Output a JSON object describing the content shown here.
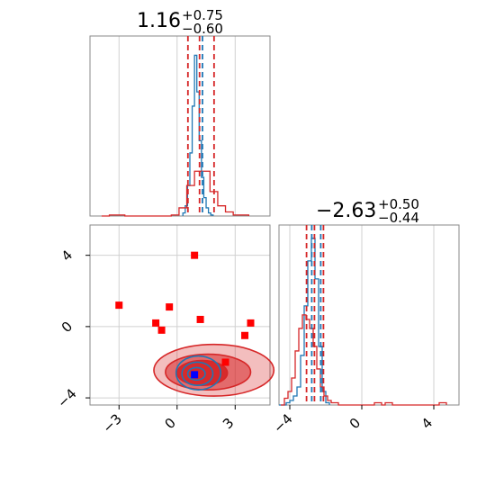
{
  "colors": {
    "blue": "#1f77b4",
    "red": "#d62728",
    "marker_red": "#ff0000",
    "marker_blue": "#0000ff",
    "grid": "#d0d0d0",
    "frame": "#888888"
  },
  "chart_data": {
    "type": "corner",
    "grid": true,
    "panels": [
      {
        "id": "hist_p1",
        "type": "histogram",
        "title": {
          "main": "1.16",
          "sup": "+0.75",
          "sub": "−0.60"
        },
        "xlim": [
          -4.5,
          4.8
        ],
        "quantiles_red": [
          0.56,
          1.16,
          1.91
        ],
        "quantiles_blue": [
          1.31
        ],
        "series": [
          {
            "name": "",
            "color": "#1f77b4",
            "bin_edges": [
              0.3,
              0.42,
              0.54,
              0.66,
              0.78,
              0.9,
              1.02,
              1.14,
              1.26,
              1.38,
              1.5,
              1.62,
              1.74,
              1.86
            ],
            "counts": [
              3,
              10,
              30,
              62,
              108,
              158,
              122,
              74,
              38,
              18,
              8,
              3,
              1
            ]
          },
          {
            "name": "",
            "color": "#d62728",
            "bin_edges": [
              -3.9,
              -3.5,
              -3.1,
              -2.7,
              -2.3,
              -1.9,
              -1.5,
              -1.1,
              -0.7,
              -0.3,
              0.1,
              0.5,
              0.9,
              1.3,
              1.7,
              2.1,
              2.5,
              2.9,
              3.3,
              3.7
            ],
            "counts": [
              0,
              1,
              1,
              0,
              0,
              0,
              0,
              0,
              0,
              1,
              8,
              30,
              44,
              44,
              24,
              10,
              4,
              1,
              1
            ]
          }
        ]
      },
      {
        "id": "hist_p2",
        "type": "histogram",
        "title": {
          "main": "−2.63",
          "sup": "+0.50",
          "sub": "−0.44"
        },
        "xlim": [
          -4.6,
          5.4
        ],
        "xticks": [
          -4,
          0,
          4
        ],
        "quantiles_red": [
          -3.07,
          -2.63,
          -2.13
        ],
        "quantiles_blue": [
          -2.78,
          -2.28
        ],
        "series": [
          {
            "name": "",
            "color": "#1f77b4",
            "bin_edges": [
              -4.6,
              -4.4,
              -4.2,
              -4.0,
              -3.8,
              -3.6,
              -3.4,
              -3.2,
              -3.0,
              -2.8,
              -2.6,
              -2.4,
              -2.2,
              -2.0,
              -1.8
            ],
            "counts": [
              0,
              0,
              1,
              2,
              4,
              8,
              22,
              44,
              64,
              74,
              56,
              26,
              6,
              1
            ]
          },
          {
            "name": "",
            "color": "#d62728",
            "bin_edges": [
              -4.5,
              -4.3,
              -4.1,
              -3.9,
              -3.7,
              -3.5,
              -3.3,
              -3.1,
              -2.9,
              -2.7,
              -2.5,
              -2.3,
              -2.1,
              -1.9,
              -1.7,
              -1.5,
              -1.3,
              -1.1,
              -0.9,
              -0.7,
              -0.5,
              -0.3,
              -0.1,
              0.1,
              0.3,
              0.5,
              0.7,
              0.9,
              1.1,
              1.3,
              1.5,
              1.7,
              1.9,
              2.1,
              2.3,
              2.5,
              2.7,
              2.9,
              3.1,
              3.3,
              3.5,
              3.7,
              3.9,
              4.1,
              4.3,
              4.5,
              4.7
            ],
            "counts": [
              0,
              3,
              6,
              12,
              24,
              34,
              40,
              38,
              34,
              26,
              16,
              8,
              4,
              2,
              1,
              1,
              0,
              0,
              0,
              0,
              0,
              0,
              0,
              0,
              0,
              0,
              1,
              1,
              0,
              1,
              1,
              0,
              0,
              0,
              0,
              0,
              0,
              0,
              0,
              0,
              0,
              0,
              0,
              0,
              1,
              1
            ]
          }
        ]
      },
      {
        "id": "scatter_p1_p2",
        "type": "scatter_contour",
        "xlim": [
          -4.5,
          4.8
        ],
        "ylim": [
          -4.4,
          5.7
        ],
        "xticks": [
          -3,
          0,
          3
        ],
        "yticks": [
          -4,
          0,
          4
        ],
        "xticklabels": [
          "−3",
          "0",
          "3"
        ],
        "yticklabels": [
          "−4",
          "0",
          "4"
        ],
        "markers_red": [
          [
            -3.0,
            1.2
          ],
          [
            -1.1,
            0.2
          ],
          [
            -0.8,
            -0.2
          ],
          [
            -0.4,
            1.1
          ],
          [
            0.9,
            4.0
          ],
          [
            1.2,
            0.4
          ],
          [
            2.5,
            -2.0
          ],
          [
            3.5,
            -0.5
          ],
          [
            3.8,
            0.2
          ]
        ],
        "marker_blue": [
          0.9,
          -2.7
        ],
        "contours_red": [
          {
            "center": [
              1.3,
              -2.6
            ],
            "rx": 1.3,
            "ry": 0.7,
            "fill_opacity": 0.95
          },
          {
            "center": [
              1.6,
              -2.55
            ],
            "rx": 2.2,
            "ry": 1.0,
            "fill_opacity": 0.55
          },
          {
            "center": [
              1.9,
              -2.45
            ],
            "rx": 3.1,
            "ry": 1.45,
            "fill_opacity": 0.3
          }
        ],
        "contours_blue": [
          {
            "center": [
              1.0,
              -2.65
            ],
            "rx": 0.45,
            "ry": 0.35
          },
          {
            "center": [
              1.05,
              -2.65
            ],
            "rx": 0.8,
            "ry": 0.65
          },
          {
            "center": [
              1.1,
              -2.6
            ],
            "rx": 1.15,
            "ry": 0.95
          }
        ]
      }
    ]
  }
}
